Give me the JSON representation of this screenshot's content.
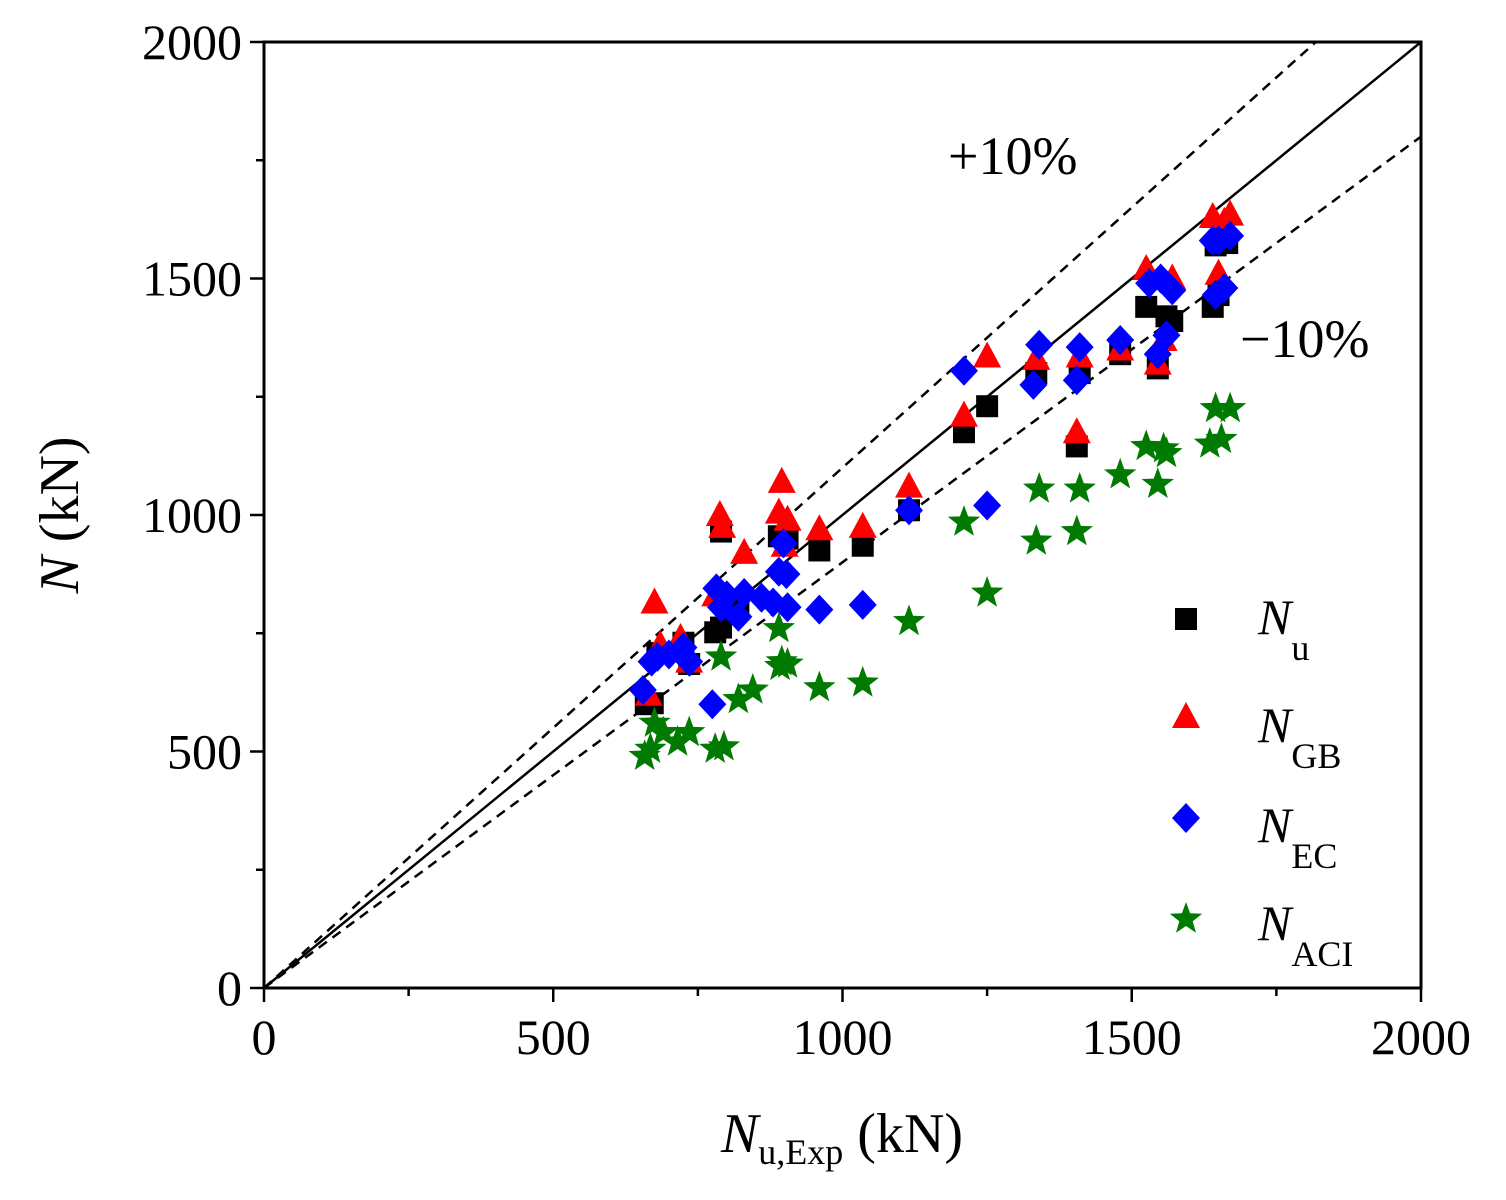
{
  "chart_data": {
    "type": "scatter",
    "xlabel": {
      "main": "N",
      "sub": "u,Exp",
      "unit": " (kN)"
    },
    "ylabel": {
      "main": "N",
      "unit": " (kN)"
    },
    "xlim": [
      0,
      2000
    ],
    "ylim": [
      0,
      2000
    ],
    "x_ticks": [
      "0",
      "500",
      "1000",
      "1500",
      "2000"
    ],
    "y_ticks": [
      "0",
      "500",
      "1000",
      "1500",
      "2000"
    ],
    "grid": false,
    "legend_position": "bottom-right",
    "reference_lines": [
      {
        "name": "equality",
        "slope": 1.0,
        "style": "solid"
      },
      {
        "name": "plus-10",
        "slope": 1.1,
        "style": "dashed",
        "label": "+10%"
      },
      {
        "name": "minus-10",
        "slope": 0.9,
        "style": "dashed",
        "label": "−10%"
      }
    ],
    "series": [
      {
        "name": "Nu",
        "legend_main": "N",
        "legend_sub": "u",
        "marker": "square",
        "color": "#000000",
        "points": [
          [
            660,
            600
          ],
          [
            672,
            602
          ],
          [
            680,
            708
          ],
          [
            725,
            730
          ],
          [
            735,
            685
          ],
          [
            780,
            752
          ],
          [
            790,
            762
          ],
          [
            790,
            965
          ],
          [
            820,
            800
          ],
          [
            890,
            955
          ],
          [
            905,
            950
          ],
          [
            960,
            925
          ],
          [
            1035,
            935
          ],
          [
            1115,
            1010
          ],
          [
            1210,
            1175
          ],
          [
            1250,
            1230
          ],
          [
            1335,
            1300
          ],
          [
            1405,
            1145
          ],
          [
            1410,
            1300
          ],
          [
            1480,
            1340
          ],
          [
            1525,
            1440
          ],
          [
            1545,
            1310
          ],
          [
            1560,
            1420
          ],
          [
            1570,
            1410
          ],
          [
            1640,
            1440
          ],
          [
            1645,
            1570
          ],
          [
            1650,
            1465
          ],
          [
            1660,
            1575
          ],
          [
            1665,
            1575
          ]
        ]
      },
      {
        "name": "NGB",
        "legend_main": "N",
        "legend_sub": "GB",
        "marker": "triangle",
        "color": "#ff0000",
        "points": [
          [
            665,
            620
          ],
          [
            675,
            815
          ],
          [
            685,
            725
          ],
          [
            720,
            740
          ],
          [
            735,
            690
          ],
          [
            780,
            830
          ],
          [
            788,
            1000
          ],
          [
            792,
            975
          ],
          [
            830,
            920
          ],
          [
            890,
            1005
          ],
          [
            895,
            1070
          ],
          [
            900,
            935
          ],
          [
            905,
            990
          ],
          [
            960,
            970
          ],
          [
            1035,
            975
          ],
          [
            1115,
            1060
          ],
          [
            1210,
            1210
          ],
          [
            1250,
            1335
          ],
          [
            1335,
            1330
          ],
          [
            1405,
            1175
          ],
          [
            1410,
            1335
          ],
          [
            1480,
            1350
          ],
          [
            1525,
            1520
          ],
          [
            1545,
            1320
          ],
          [
            1555,
            1370
          ],
          [
            1570,
            1500
          ],
          [
            1640,
            1630
          ],
          [
            1650,
            1510
          ],
          [
            1660,
            1620
          ],
          [
            1670,
            1635
          ]
        ]
      },
      {
        "name": "NEC",
        "legend_main": "N",
        "legend_sub": "EC",
        "marker": "diamond",
        "color": "#0000ff",
        "points": [
          [
            655,
            630
          ],
          [
            670,
            690
          ],
          [
            680,
            700
          ],
          [
            700,
            705
          ],
          [
            725,
            720
          ],
          [
            735,
            690
          ],
          [
            775,
            600
          ],
          [
            782,
            845
          ],
          [
            790,
            805
          ],
          [
            800,
            830
          ],
          [
            820,
            785
          ],
          [
            830,
            835
          ],
          [
            860,
            825
          ],
          [
            880,
            815
          ],
          [
            890,
            880
          ],
          [
            898,
            940
          ],
          [
            903,
            875
          ],
          [
            905,
            805
          ],
          [
            960,
            800
          ],
          [
            1035,
            810
          ],
          [
            1115,
            1010
          ],
          [
            1210,
            1305
          ],
          [
            1250,
            1020
          ],
          [
            1330,
            1275
          ],
          [
            1340,
            1360
          ],
          [
            1405,
            1285
          ],
          [
            1410,
            1355
          ],
          [
            1480,
            1370
          ],
          [
            1530,
            1490
          ],
          [
            1545,
            1340
          ],
          [
            1550,
            1500
          ],
          [
            1560,
            1380
          ],
          [
            1570,
            1475
          ],
          [
            1640,
            1580
          ],
          [
            1645,
            1465
          ],
          [
            1650,
            1580
          ],
          [
            1660,
            1480
          ],
          [
            1670,
            1590
          ]
        ]
      },
      {
        "name": "NACI",
        "legend_main": "N",
        "legend_sub": "ACI",
        "marker": "star",
        "color": "#007a00",
        "points": [
          [
            658,
            490
          ],
          [
            668,
            505
          ],
          [
            675,
            560
          ],
          [
            690,
            540
          ],
          [
            715,
            520
          ],
          [
            735,
            540
          ],
          [
            780,
            505
          ],
          [
            790,
            700
          ],
          [
            795,
            510
          ],
          [
            820,
            610
          ],
          [
            845,
            630
          ],
          [
            890,
            760
          ],
          [
            892,
            680
          ],
          [
            895,
            690
          ],
          [
            905,
            685
          ],
          [
            960,
            635
          ],
          [
            1035,
            645
          ],
          [
            1115,
            775
          ],
          [
            1210,
            985
          ],
          [
            1250,
            835
          ],
          [
            1335,
            945
          ],
          [
            1340,
            1055
          ],
          [
            1405,
            965
          ],
          [
            1410,
            1055
          ],
          [
            1480,
            1085
          ],
          [
            1525,
            1145
          ],
          [
            1545,
            1065
          ],
          [
            1555,
            1140
          ],
          [
            1560,
            1130
          ],
          [
            1635,
            1150
          ],
          [
            1645,
            1225
          ],
          [
            1655,
            1160
          ],
          [
            1670,
            1225
          ]
        ]
      }
    ]
  }
}
